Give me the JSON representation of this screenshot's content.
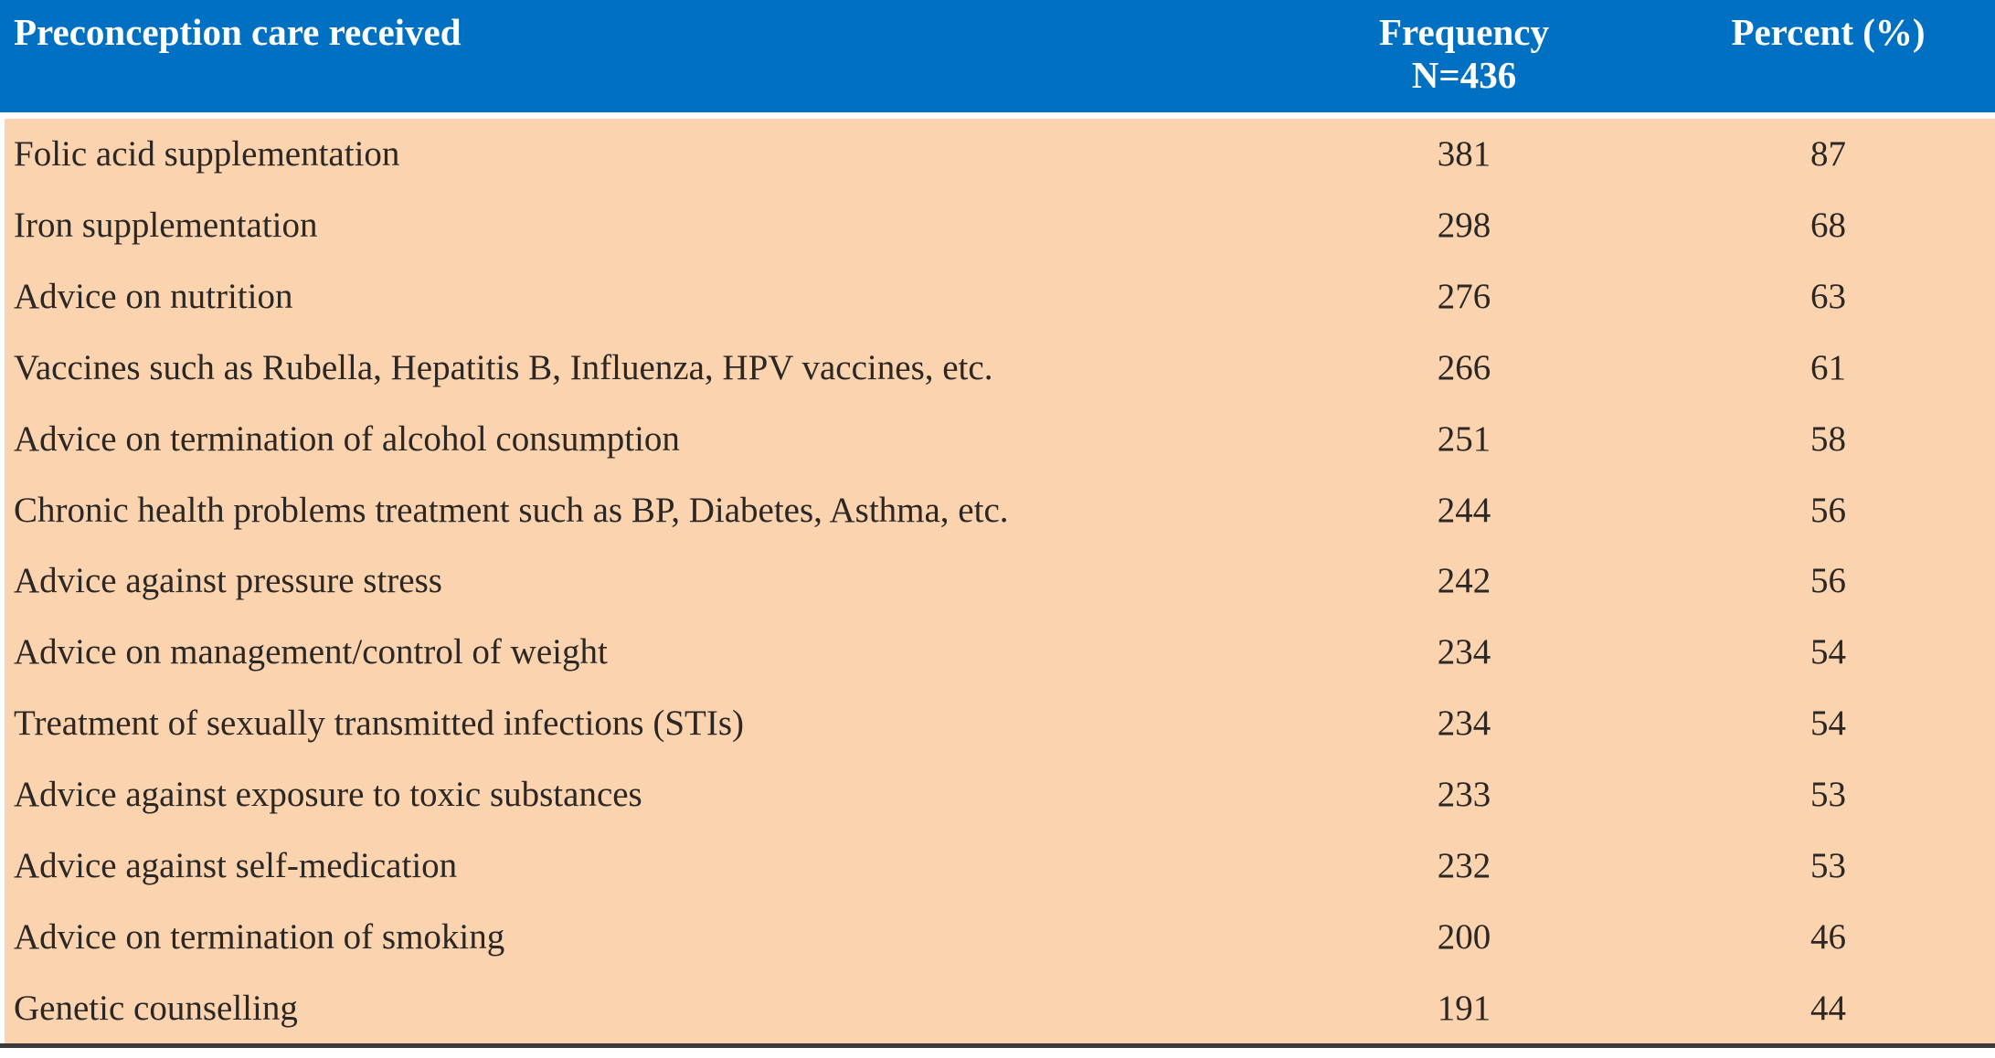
{
  "title": "Preconception care received",
  "colors": {
    "header_bg": "#0071c2",
    "header_text": "#ffffff",
    "body_bg": "#fbd3ae",
    "body_text": "#2b2724",
    "bottom_rule": "#3a3a3a",
    "page_bg": "#ffffff"
  },
  "header": {
    "col1": "Preconception care received",
    "col2_line1": "Frequency",
    "col2_line2": "N=436",
    "col3": "Percent (%)"
  },
  "rows": [
    {
      "care": "Folic acid supplementation",
      "frequency": "381",
      "percent": "87"
    },
    {
      "care": "Iron supplementation",
      "frequency": "298",
      "percent": "68"
    },
    {
      "care": "Advice on nutrition",
      "frequency": "276",
      "percent": "63"
    },
    {
      "care": "Vaccines such as Rubella, Hepatitis B, Influenza, HPV vaccines, etc.",
      "frequency": "266",
      "percent": "61"
    },
    {
      "care": "Advice on termination of alcohol consumption",
      "frequency": "251",
      "percent": "58"
    },
    {
      "care": "Chronic health problems treatment such as BP, Diabetes, Asthma, etc.",
      "frequency": "244",
      "percent": "56"
    },
    {
      "care": "Advice against pressure stress",
      "frequency": "242",
      "percent": "56"
    },
    {
      "care": "Advice on management/control of weight",
      "frequency": "234",
      "percent": "54"
    },
    {
      "care": "Treatment of sexually transmitted infections (STIs)",
      "frequency": "234",
      "percent": "54"
    },
    {
      "care": "Advice against exposure to toxic substances",
      "frequency": "233",
      "percent": "53"
    },
    {
      "care": "Advice against self-medication",
      "frequency": "232",
      "percent": "53"
    },
    {
      "care": "Advice on termination of smoking",
      "frequency": "200",
      "percent": "46"
    },
    {
      "care": "Genetic counselling",
      "frequency": "191",
      "percent": "44"
    }
  ],
  "chart_data": {
    "type": "table",
    "title": "Preconception care received",
    "columns": [
      "Preconception care received",
      "Frequency N=436",
      "Percent (%)"
    ],
    "rows": [
      [
        "Folic acid supplementation",
        381,
        87
      ],
      [
        "Iron supplementation",
        298,
        68
      ],
      [
        "Advice on nutrition",
        276,
        63
      ],
      [
        "Vaccines such as Rubella, Hepatitis B, Influenza, HPV vaccines, etc.",
        266,
        61
      ],
      [
        "Advice on termination of alcohol consumption",
        251,
        58
      ],
      [
        "Chronic health problems treatment such as BP, Diabetes, Asthma, etc.",
        244,
        56
      ],
      [
        "Advice against pressure stress",
        242,
        56
      ],
      [
        "Advice on management/control of weight",
        234,
        54
      ],
      [
        "Treatment of sexually transmitted infections (STIs)",
        234,
        54
      ],
      [
        "Advice against exposure to toxic substances",
        233,
        53
      ],
      [
        "Advice against self-medication",
        232,
        53
      ],
      [
        "Advice on termination of smoking",
        200,
        46
      ],
      [
        "Genetic counselling",
        191,
        44
      ]
    ],
    "sample_size": 436
  }
}
